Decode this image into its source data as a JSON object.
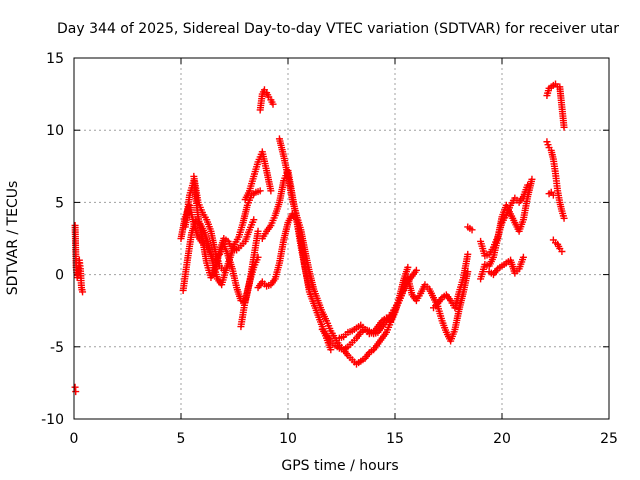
{
  "chart_data": {
    "type": "scatter",
    "title": "Day 344 of 2025, Sidereal Day-to-day VTEC variation (SDTVAR) for receiver utar",
    "xlabel": "GPS time / hours",
    "ylabel": "SDTVAR / TECUs",
    "xlim": [
      0,
      25
    ],
    "ylim": [
      -10,
      15
    ],
    "xticks": [
      0,
      5,
      10,
      15,
      20,
      25
    ],
    "yticks": [
      -10,
      -5,
      0,
      5,
      10,
      15
    ],
    "xtick_labels": [
      "0",
      "5",
      "10",
      "15",
      "20",
      "25"
    ],
    "ytick_labels": [
      "-10",
      "-5",
      "0",
      "5",
      "10",
      "15"
    ],
    "grid": true,
    "marker": "+",
    "color": "#ff0000",
    "series": [
      {
        "name": "s1",
        "x": [
          0.05,
          0.1,
          0.15,
          0.2,
          0.25,
          0.3,
          0.35,
          0.4
        ],
        "y": [
          3.4,
          0.5,
          -0.2,
          0.1,
          1.0,
          0.4,
          -0.9,
          -1.2
        ]
      },
      {
        "name": "s1b",
        "x": [
          0.05,
          0.08
        ],
        "y": [
          -7.8,
          -8.1
        ]
      },
      {
        "name": "s2",
        "x": [
          5.0,
          5.2,
          5.4,
          5.6,
          5.8,
          6.0,
          6.2,
          6.4,
          6.6,
          6.8,
          7.0,
          7.2,
          7.4,
          7.6,
          7.8,
          8.0,
          8.2,
          8.4,
          8.6
        ],
        "y": [
          2.5,
          4.0,
          4.8,
          3.5,
          2.6,
          2.2,
          1.9,
          1.4,
          1.1,
          1.4,
          2.1,
          1.3,
          0.4,
          -0.9,
          -1.8,
          -1.9,
          -0.6,
          1.2,
          3.0
        ]
      },
      {
        "name": "s3",
        "x": [
          5.1,
          5.3,
          5.5,
          5.7,
          5.9,
          6.1,
          6.3,
          6.5,
          6.7,
          6.9,
          7.1,
          7.3,
          7.5,
          7.7,
          7.9,
          8.1,
          8.3,
          8.5,
          8.7
        ],
        "y": [
          -1.1,
          1.0,
          2.9,
          3.8,
          3.5,
          2.9,
          2.0,
          0.8,
          -0.3,
          -0.7,
          0.3,
          1.2,
          2.1,
          2.6,
          3.6,
          4.8,
          5.5,
          5.7,
          5.8
        ]
      },
      {
        "name": "s4",
        "x": [
          5.2,
          5.4,
          5.6,
          5.8,
          6.0,
          6.2,
          6.4,
          6.6,
          6.8,
          7.0,
          7.2,
          7.4,
          7.6,
          7.8,
          8.0,
          8.2,
          8.4
        ],
        "y": [
          3.3,
          5.5,
          6.5,
          4.0,
          2.5,
          0.8,
          -0.2,
          0.4,
          1.6,
          2.5,
          2.3,
          1.8,
          1.7,
          2.0,
          2.3,
          3.1,
          3.8
        ]
      },
      {
        "name": "s5",
        "x": [
          5.6,
          5.8,
          6.0,
          6.2,
          6.4,
          6.6,
          6.8,
          7.0
        ],
        "y": [
          6.8,
          5.0,
          4.3,
          3.8,
          3.0,
          1.6,
          0.6,
          0.3
        ]
      },
      {
        "name": "s6",
        "x": [
          7.8,
          8.0,
          8.2,
          8.4,
          8.6
        ],
        "y": [
          -3.6,
          -1.8,
          -0.5,
          0.5,
          1.2
        ]
      },
      {
        "name": "s7",
        "x": [
          8.0,
          8.2,
          8.4,
          8.6,
          8.8,
          9.0,
          9.2
        ],
        "y": [
          5.2,
          5.8,
          6.8,
          7.8,
          8.5,
          7.2,
          5.8
        ]
      },
      {
        "name": "s8",
        "x": [
          8.7,
          8.8,
          8.9,
          9.0,
          9.1,
          9.2,
          9.3
        ],
        "y": [
          11.4,
          12.5,
          12.8,
          12.6,
          12.3,
          12.1,
          11.8
        ]
      },
      {
        "name": "s9",
        "x": [
          8.6,
          8.8,
          9.0,
          9.2,
          9.4,
          9.6,
          9.8,
          10.0,
          10.2,
          10.4,
          10.6,
          10.8,
          11.0,
          11.2,
          11.4,
          11.6,
          11.8,
          12.0
        ],
        "y": [
          -0.9,
          -0.5,
          -0.8,
          -0.7,
          -0.3,
          0.8,
          2.4,
          3.6,
          4.2,
          3.8,
          2.4,
          0.5,
          -1.2,
          -2.0,
          -2.8,
          -3.6,
          -4.4,
          -5.2
        ]
      },
      {
        "name": "s10",
        "x": [
          8.8,
          9.0,
          9.2,
          9.4,
          9.6,
          9.8,
          10.0,
          10.2,
          10.4,
          10.6,
          10.8,
          11.0
        ],
        "y": [
          2.5,
          3.0,
          3.4,
          4.1,
          5.0,
          6.5,
          7.2,
          5.5,
          3.8,
          2.0,
          0.4,
          -1.0
        ]
      },
      {
        "name": "s11",
        "x": [
          9.6,
          9.8,
          10.0,
          10.2,
          10.4,
          10.6,
          10.8,
          11.0,
          11.2,
          11.4,
          11.6,
          11.8,
          12.0,
          12.2,
          12.4,
          12.6,
          12.8,
          13.0,
          13.2,
          13.4,
          13.6,
          13.8,
          14.0,
          14.2,
          14.4,
          14.6
        ],
        "y": [
          9.4,
          8.2,
          6.8,
          5.2,
          4.1,
          3.1,
          1.6,
          0.2,
          -1.0,
          -1.8,
          -2.6,
          -3.2,
          -3.9,
          -4.4,
          -4.9,
          -5.2,
          -5.6,
          -5.9,
          -6.2,
          -6.0,
          -5.8,
          -5.4,
          -5.2,
          -4.8,
          -4.4,
          -4.0
        ]
      },
      {
        "name": "s12",
        "x": [
          11.6,
          11.8,
          12.0,
          12.2,
          12.4,
          12.6,
          12.8,
          13.0,
          13.2,
          13.4,
          13.6,
          13.8,
          14.0,
          14.2,
          14.4,
          14.6,
          14.8,
          15.0,
          15.2,
          15.4,
          15.6,
          15.8,
          16.0
        ],
        "y": [
          -3.8,
          -4.2,
          -4.6,
          -4.9,
          -5.1,
          -5.2,
          -5.0,
          -4.7,
          -4.4,
          -4.0,
          -3.8,
          -3.9,
          -4.1,
          -4.0,
          -3.6,
          -3.2,
          -2.8,
          -2.3,
          -1.8,
          -1.1,
          -0.5,
          -0.1,
          0.3
        ]
      },
      {
        "name": "s13",
        "x": [
          12.4,
          12.6,
          12.8,
          13.0,
          13.2,
          13.4,
          13.6,
          13.8,
          14.0,
          14.2,
          14.4,
          14.6,
          14.8,
          15.0,
          15.2,
          15.4,
          15.6
        ],
        "y": [
          -4.4,
          -4.3,
          -4.0,
          -3.9,
          -3.7,
          -3.5,
          -3.8,
          -4.1,
          -4.0,
          -3.6,
          -3.2,
          -3.0,
          -3.2,
          -2.5,
          -1.8,
          -1.0,
          -0.3
        ]
      },
      {
        "name": "s14",
        "x": [
          14.6,
          14.8,
          15.0,
          15.2,
          15.4,
          15.6
        ],
        "y": [
          -4.0,
          -3.3,
          -2.6,
          -1.6,
          -0.4,
          0.5
        ]
      },
      {
        "name": "s15",
        "x": [
          15.6,
          15.8,
          16.0,
          16.2,
          16.4,
          16.6,
          16.8,
          17.0,
          17.2,
          17.4,
          17.6,
          17.8,
          18.0,
          18.2,
          18.4
        ],
        "y": [
          -0.2,
          -1.4,
          -1.8,
          -1.3,
          -0.7,
          -1.0,
          -1.6,
          -2.2,
          -3.2,
          -4.0,
          -4.6,
          -3.8,
          -2.4,
          -1.2,
          0.2
        ]
      },
      {
        "name": "s16",
        "x": [
          16.8,
          17.0,
          17.2,
          17.4,
          17.6,
          17.8,
          18.0,
          18.2,
          18.4
        ],
        "y": [
          -2.3,
          -2.0,
          -1.6,
          -1.4,
          -1.8,
          -2.3,
          -1.2,
          -0.2,
          1.4
        ]
      },
      {
        "name": "s17",
        "x": [
          18.4,
          18.6
        ],
        "y": [
          3.3,
          3.1
        ]
      },
      {
        "name": "s18",
        "x": [
          19.0,
          19.2,
          19.4,
          19.6,
          19.8,
          20.0,
          20.2,
          20.4,
          20.6,
          20.8,
          21.0,
          21.2,
          21.4
        ],
        "y": [
          -0.3,
          0.7,
          0.6,
          1.2,
          2.5,
          4.0,
          4.8,
          4.2,
          3.6,
          3.0,
          3.8,
          5.4,
          6.6
        ]
      },
      {
        "name": "s19",
        "x": [
          19.0,
          19.2,
          19.4,
          19.6,
          19.8,
          20.0,
          20.2,
          20.4,
          20.6,
          20.8,
          21.0,
          21.2
        ],
        "y": [
          2.3,
          1.3,
          1.4,
          1.9,
          2.6,
          3.6,
          4.1,
          4.8,
          5.3,
          5.0,
          5.4,
          6.2
        ]
      },
      {
        "name": "s20",
        "x": [
          19.4,
          19.6,
          19.8,
          20.0,
          20.2,
          20.4,
          20.6,
          20.8,
          21.0
        ],
        "y": [
          0.2,
          0.0,
          0.4,
          0.6,
          0.8,
          1.0,
          0.1,
          0.4,
          1.2
        ]
      },
      {
        "name": "s21",
        "x": [
          22.1,
          22.2,
          22.3,
          22.4,
          22.5,
          22.6,
          22.7,
          22.8,
          22.9
        ],
        "y": [
          12.4,
          12.9,
          13.0,
          13.1,
          13.2,
          13.0,
          13.0,
          11.6,
          10.2
        ]
      },
      {
        "name": "s22",
        "x": [
          22.1,
          22.2,
          22.3,
          22.4,
          22.5,
          22.6,
          22.7,
          22.8,
          22.9
        ],
        "y": [
          9.2,
          8.8,
          8.6,
          8.0,
          7.0,
          5.8,
          5.0,
          4.4,
          3.9
        ]
      },
      {
        "name": "s23",
        "x": [
          22.2,
          22.3,
          22.4
        ],
        "y": [
          5.6,
          5.7,
          5.5
        ]
      },
      {
        "name": "s24",
        "x": [
          22.4,
          22.5,
          22.6,
          22.7,
          22.8
        ],
        "y": [
          2.4,
          2.2,
          2.1,
          1.8,
          1.6
        ]
      }
    ]
  }
}
